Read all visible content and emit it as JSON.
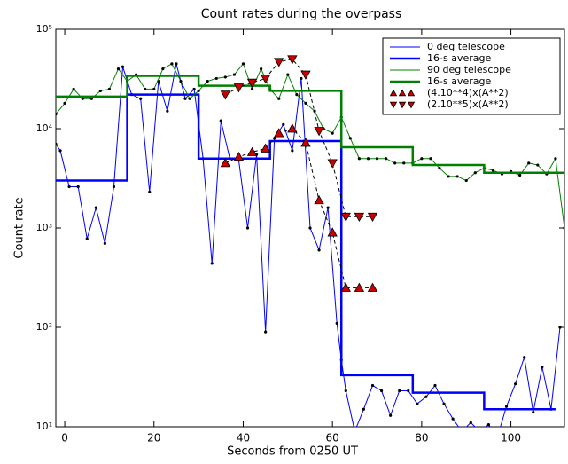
{
  "chart_data": {
    "type": "line",
    "title": "Count rates during the overpass",
    "x_label": "Seconds from 0250 UT",
    "y_label": "Count rate",
    "log_y": true,
    "legend": "upper right",
    "xlim": [
      -2,
      112
    ],
    "ylim": [
      10,
      100000
    ],
    "xticks": [
      0,
      20,
      40,
      60,
      80,
      100
    ],
    "yticks": [
      {
        "value": 10,
        "label": "10¹"
      },
      {
        "value": 100,
        "label": "10²"
      },
      {
        "value": 1000,
        "label": "10³"
      },
      {
        "value": 10000,
        "label": "10⁴"
      },
      {
        "value": 100000,
        "label": "10⁵"
      }
    ],
    "series": [
      {
        "name": "0 deg telescope",
        "color": "#0000ff",
        "style": "line",
        "marker": "dot",
        "x": [
          -2,
          -1,
          1,
          3,
          5,
          7,
          9,
          11,
          13,
          15,
          17,
          19,
          21,
          23,
          25,
          27,
          29,
          31,
          33,
          35,
          37,
          39,
          41,
          43,
          45,
          47,
          49,
          51,
          53,
          55,
          57,
          59,
          61,
          62,
          63,
          65,
          67,
          69,
          71,
          73,
          75,
          77,
          79,
          81,
          83,
          85,
          87,
          89,
          91,
          93,
          95,
          97,
          99,
          101,
          103,
          105,
          107,
          109,
          111
        ],
        "values": [
          7000,
          6000,
          2600,
          2600,
          780,
          1600,
          700,
          2600,
          42000,
          22000,
          20000,
          2300,
          30000,
          15000,
          45000,
          20000,
          25000,
          5000,
          440,
          12000,
          5000,
          4800,
          1000,
          5500,
          90,
          8000,
          11000,
          6000,
          32000,
          1000,
          600,
          1600,
          110,
          47,
          23,
          9,
          15,
          26,
          23,
          13,
          23,
          23,
          17,
          20,
          26,
          17,
          12,
          9,
          11,
          9,
          10.5,
          8,
          16,
          27,
          50,
          14,
          40,
          15,
          100
        ]
      },
      {
        "name": "16-s average",
        "color": "#0000ff",
        "style": "step",
        "x": [
          -2,
          14,
          30,
          46,
          62,
          78,
          94,
          110
        ],
        "values": [
          3000,
          22000,
          5000,
          7500,
          33,
          22,
          15,
          15
        ]
      },
      {
        "name": "90 deg telescope",
        "color": "#008000",
        "style": "line",
        "marker": "dot",
        "x": [
          -2,
          0,
          2,
          4,
          6,
          8,
          10,
          12,
          14,
          16,
          18,
          20,
          22,
          24,
          26,
          28,
          30,
          32,
          34,
          36,
          38,
          40,
          42,
          44,
          46,
          48,
          50,
          52,
          54,
          56,
          58,
          60,
          62,
          64,
          66,
          68,
          70,
          72,
          74,
          76,
          78,
          80,
          82,
          84,
          86,
          88,
          90,
          92,
          94,
          96,
          98,
          100,
          102,
          104,
          106,
          108,
          110,
          112
        ],
        "values": [
          14000,
          18000,
          25000,
          20000,
          20000,
          24000,
          25000,
          40000,
          30000,
          35000,
          25000,
          25000,
          40000,
          45000,
          30000,
          20000,
          24000,
          30000,
          32000,
          33000,
          35000,
          45000,
          25000,
          40000,
          25000,
          20000,
          35000,
          22000,
          18000,
          15000,
          10000,
          9000,
          13000,
          8000,
          5000,
          5000,
          5000,
          5000,
          4500,
          4500,
          4500,
          5000,
          5000,
          4000,
          3300,
          3300,
          3000,
          3600,
          4000,
          3800,
          3500,
          3700,
          3400,
          4500,
          4300,
          3500,
          5000,
          1000
        ]
      },
      {
        "name": "16-s average",
        "color": "#008000",
        "style": "step",
        "x": [
          -2,
          14,
          30,
          46,
          62,
          78,
          94,
          112
        ],
        "values": [
          21000,
          34000,
          27000,
          24000,
          6500,
          4300,
          3600,
          3600
        ]
      },
      {
        "name": "(4.10**4)x(A**2)",
        "color": "#cc0000",
        "style": "markers",
        "marker": "triangle-up",
        "x": [
          36,
          39,
          42,
          45,
          48,
          51,
          54,
          57,
          60,
          63,
          66,
          69
        ],
        "values": [
          4500,
          5200,
          5800,
          6300,
          9000,
          10000,
          7200,
          1900,
          900,
          250,
          250,
          250
        ]
      },
      {
        "name": "(2.10**5)x(A**2)",
        "color": "#cc0000",
        "style": "markers",
        "marker": "triangle-down",
        "x": [
          36,
          39,
          42,
          45,
          48,
          51,
          54,
          57,
          60,
          63,
          66,
          69
        ],
        "values": [
          22000,
          26000,
          29000,
          32000,
          47000,
          50000,
          35000,
          9500,
          4500,
          1300,
          1300,
          1300
        ]
      }
    ]
  }
}
